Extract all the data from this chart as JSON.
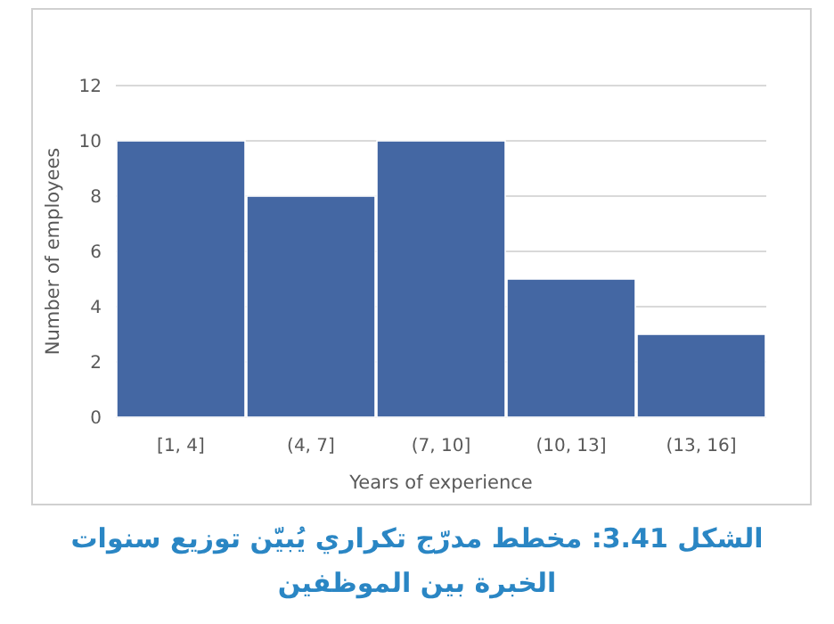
{
  "chart_data": {
    "type": "bar",
    "categories": [
      "[1, 4]",
      "(4, 7]",
      "(7, 10]",
      "(10, 13]",
      "(13, 16]"
    ],
    "values": [
      10,
      8,
      10,
      5,
      3
    ],
    "color": "#4467a3",
    "ylim": [
      0,
      12
    ],
    "yticks": [
      0,
      2,
      4,
      6,
      8,
      10,
      12
    ],
    "grid": "y",
    "xlabel": "Years of experience",
    "ylabel": "Number of employees",
    "annotations": [
      "الشكل 3.41: مخطط مدرّج تكراري يُبيّن توزيع سنوات الخبرة بين الموظفين"
    ]
  }
}
